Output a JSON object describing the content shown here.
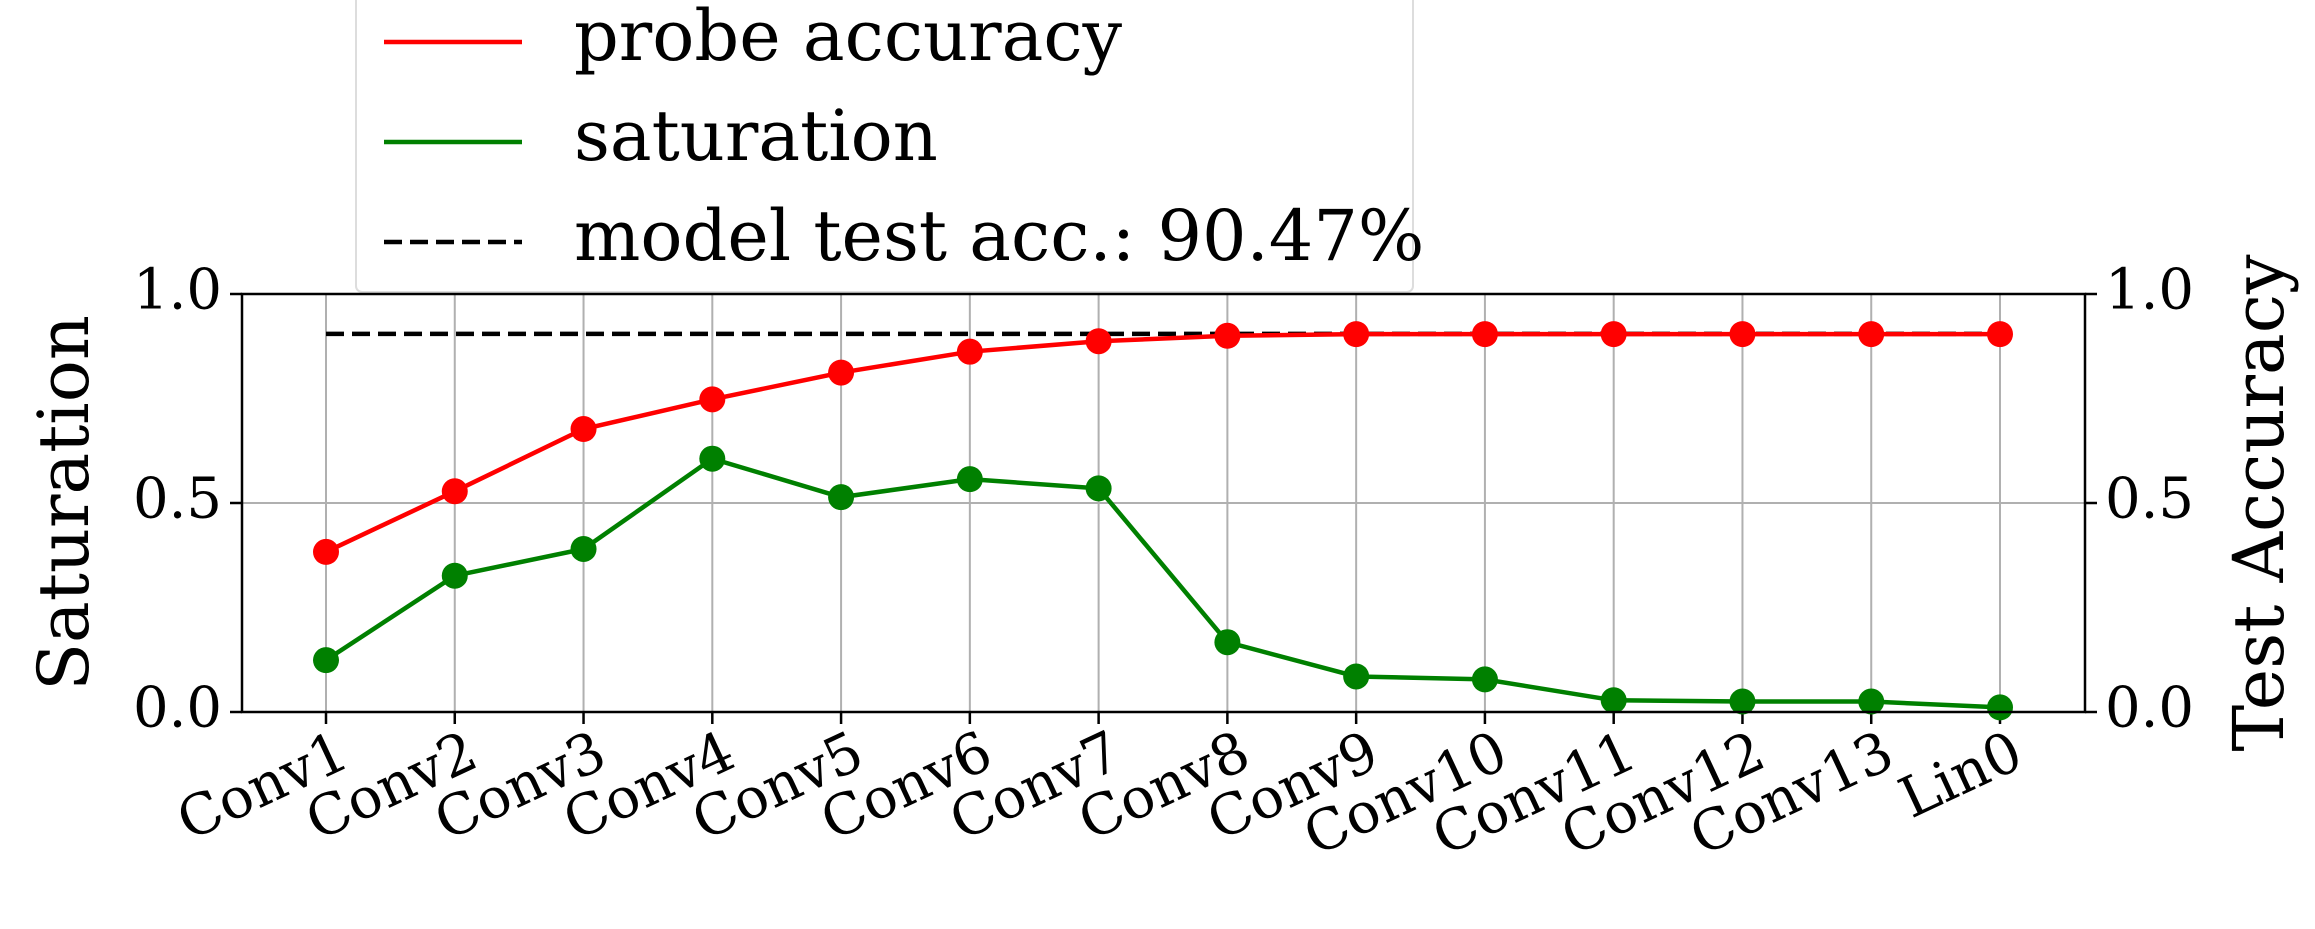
{
  "chart_data": {
    "type": "line",
    "y_label": "Saturation",
    "y2_label": "Test Accuracy",
    "y2_label_color": "#1f77b4",
    "categories": [
      "Conv1",
      "Conv2",
      "Conv3",
      "Conv4",
      "Conv5",
      "Conv6",
      "Conv7",
      "Conv8",
      "Conv9",
      "Conv10",
      "Conv11",
      "Conv12",
      "Conv13",
      "Lin0"
    ],
    "series": [
      {
        "name": "probe accuracy",
        "color": "#ff0000",
        "axis": "y2",
        "values": [
          0.383,
          0.528,
          0.677,
          0.748,
          0.812,
          0.862,
          0.887,
          0.9,
          0.904,
          0.904,
          0.904,
          0.904,
          0.904,
          0.904
        ]
      },
      {
        "name": "saturation",
        "color": "#008000",
        "values": [
          0.124,
          0.326,
          0.39,
          0.606,
          0.514,
          0.557,
          0.535,
          0.167,
          0.085,
          0.078,
          0.028,
          0.025,
          0.025,
          0.011
        ]
      }
    ],
    "reference_line": {
      "name": "model test acc.: 90.47%",
      "value": 0.9047,
      "color": "#000000",
      "axis": "y2"
    },
    "ylim": [
      0,
      1
    ],
    "yticks": [
      {
        "value": 0,
        "label": "0.0"
      },
      {
        "value": 0.5,
        "label": "0.5"
      },
      {
        "value": 1,
        "label": "1.0"
      }
    ],
    "y2lim": [
      0,
      1
    ],
    "y2ticks": [
      {
        "value": 0,
        "label": "0.0"
      },
      {
        "value": 0.5,
        "label": "0.5"
      },
      {
        "value": 1,
        "label": "1.0"
      }
    ],
    "grid": true,
    "legend": "upper left"
  }
}
